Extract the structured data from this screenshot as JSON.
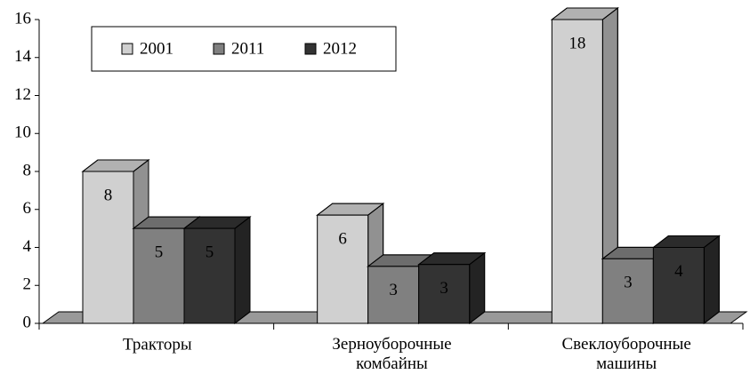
{
  "chart_data": {
    "type": "bar3d",
    "categories": [
      "Тракторы",
      "Зерноуборочные\nкомбайны",
      "Свеклоуборочные\nмашины"
    ],
    "series": [
      {
        "name": "2001",
        "color": "#d0d0d0",
        "values": [
          8,
          5.7,
          18
        ],
        "value_labels": [
          "8",
          "6",
          "18"
        ]
      },
      {
        "name": "2011",
        "color": "#808080",
        "values": [
          5,
          3,
          3.4
        ],
        "value_labels": [
          "5",
          "3",
          "3"
        ]
      },
      {
        "name": "2012",
        "color": "#333333",
        "values": [
          5,
          3.1,
          4
        ],
        "value_labels": [
          "5",
          "3",
          "4"
        ]
      }
    ],
    "ylim": [
      0,
      16
    ],
    "yticks": [
      0,
      2,
      4,
      6,
      8,
      10,
      12,
      14,
      16
    ],
    "legend": "top-left"
  }
}
